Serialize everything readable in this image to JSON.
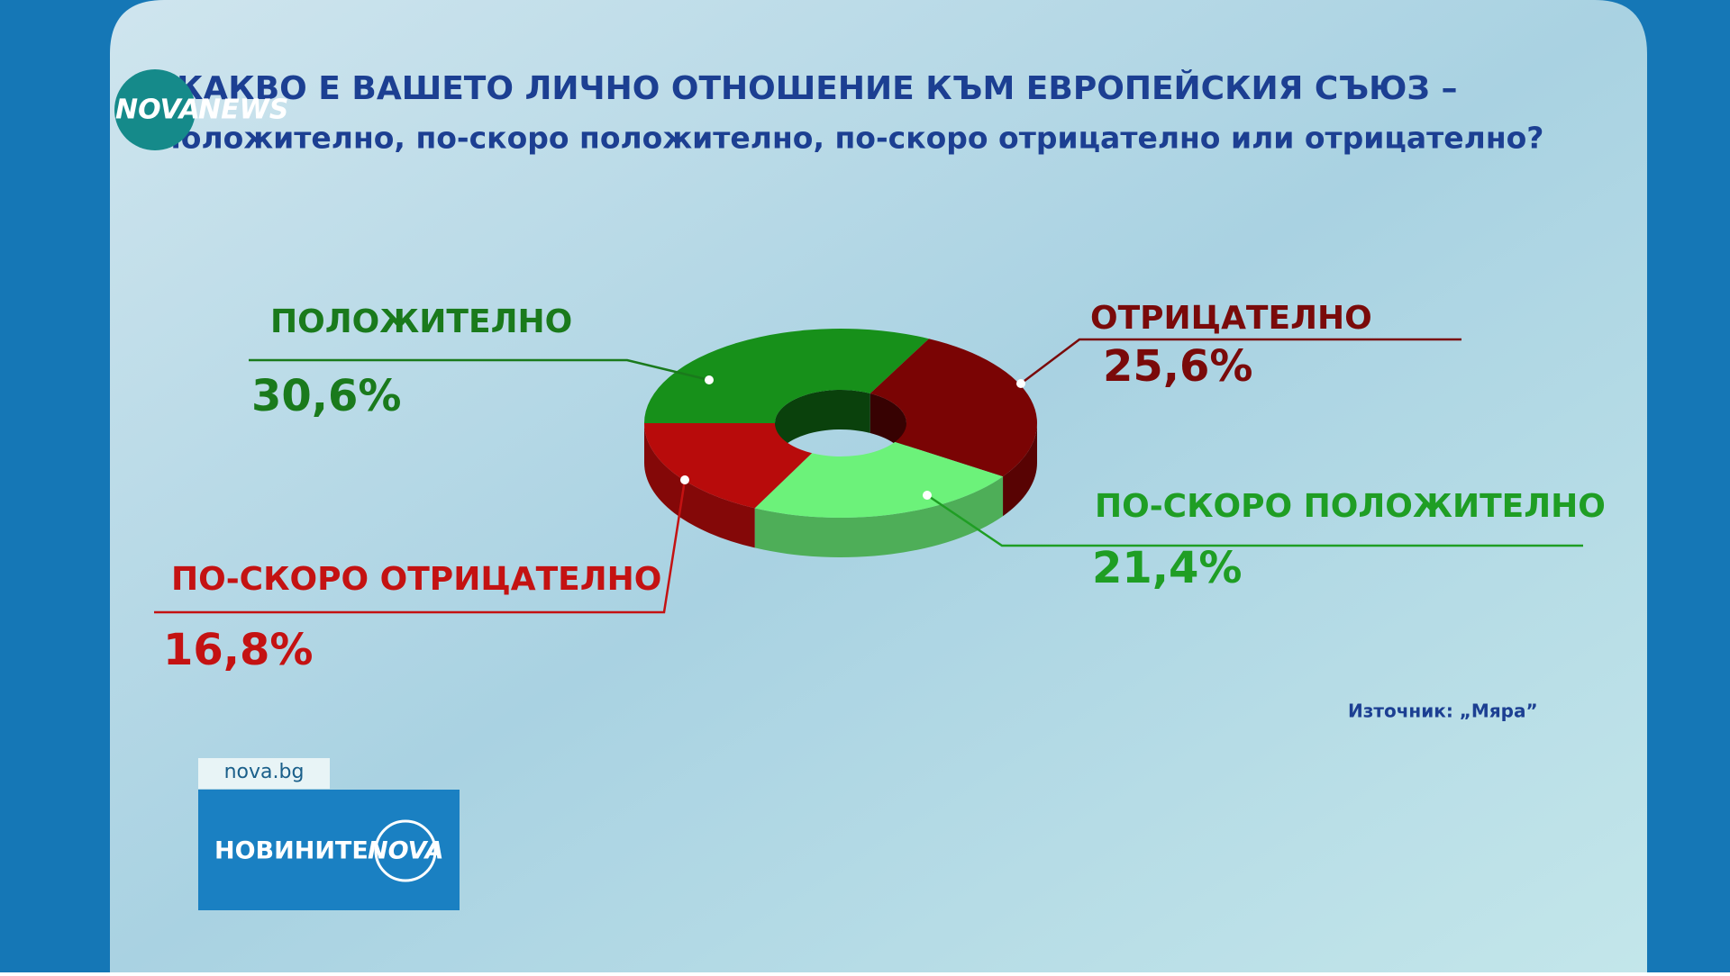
{
  "chart_data": {
    "type": "pie",
    "title": "КАКВО Е ВАШЕТО ЛИЧНО ОТНОШЕНИЕ КЪМ ЕВРОПЕЙСКИЯ СЪЮЗ –",
    "subtitle": "положително, по-скоро положително, по-скоро отрицателно или отрицателно?",
    "categories": [
      "ПОЛОЖИТЕЛНО",
      "ОТРИЦАТЕЛНО",
      "ПО-СКОРО ПОЛОЖИТЕЛНО",
      "ПО-СКОРО ОТРИЦАТЕЛНО"
    ],
    "values": [
      30.6,
      25.6,
      21.4,
      16.8
    ],
    "value_labels": [
      "30,6%",
      "25,6%",
      "21,4%",
      "16,8%"
    ],
    "colors": [
      "#17901a",
      "#7a0404",
      "#6cf27a",
      "#b80b0b"
    ],
    "label_colors": [
      "#1a7a1c",
      "#7a0a0a",
      "#1f9e24",
      "#c41212"
    ],
    "donut": true,
    "source": "Източник: „Мяра”"
  },
  "branding": {
    "top_logo": [
      "NOVA",
      "NEWS"
    ],
    "site": "nova.bg",
    "show_logo": [
      "НОВИНИТЕ",
      "NOVA"
    ]
  }
}
